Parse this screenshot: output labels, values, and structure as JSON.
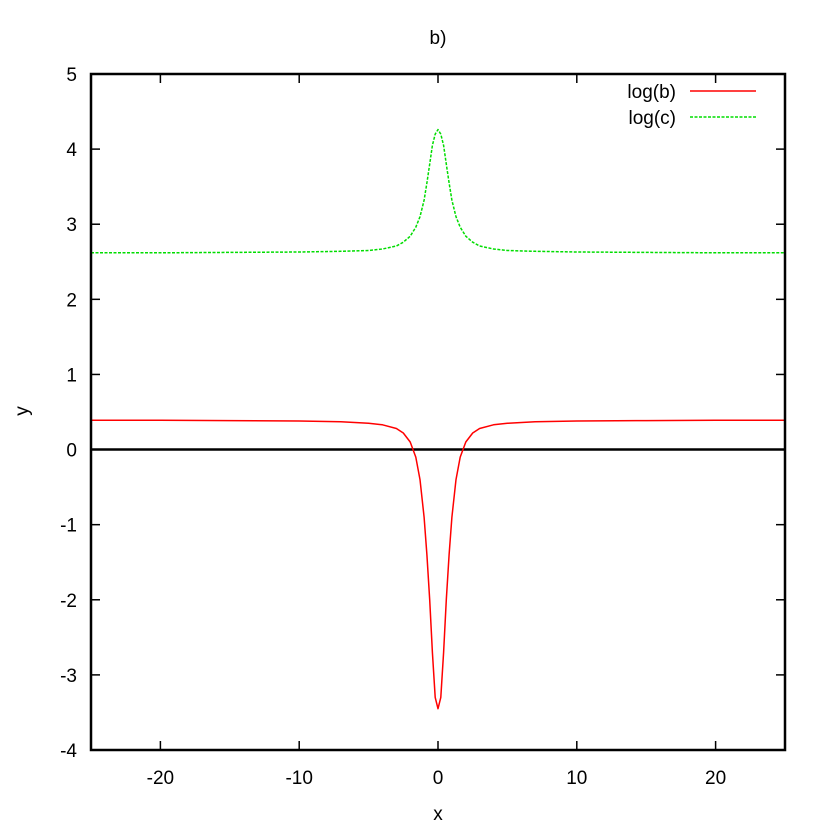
{
  "chart_data": {
    "type": "line",
    "title": "b)",
    "xlabel": "x",
    "ylabel": "y",
    "xlim": [
      -25,
      25
    ],
    "ylim": [
      -4,
      5
    ],
    "xticks": [
      -20,
      -10,
      0,
      10,
      20
    ],
    "yticks": [
      -4,
      -3,
      -2,
      -1,
      0,
      1,
      2,
      3,
      4,
      5
    ],
    "grid": false,
    "legend_position": "top-right",
    "zero_line": 0,
    "series": [
      {
        "name": "log(b)",
        "color": "#ff0000",
        "dash": "solid",
        "x": [
          -25,
          -20,
          -15,
          -10,
          -7,
          -5,
          -4,
          -3,
          -2.5,
          -2,
          -1.6,
          -1.3,
          -1,
          -0.8,
          -0.6,
          -0.4,
          -0.2,
          0,
          0.2,
          0.4,
          0.6,
          0.8,
          1,
          1.3,
          1.6,
          2,
          2.5,
          3,
          4,
          5,
          7,
          10,
          15,
          20,
          25
        ],
        "y": [
          0.39,
          0.39,
          0.385,
          0.38,
          0.37,
          0.35,
          0.33,
          0.28,
          0.22,
          0.1,
          -0.1,
          -0.4,
          -0.9,
          -1.4,
          -2.0,
          -2.7,
          -3.3,
          -3.45,
          -3.3,
          -2.7,
          -2.0,
          -1.4,
          -0.9,
          -0.4,
          -0.1,
          0.1,
          0.22,
          0.28,
          0.33,
          0.35,
          0.37,
          0.38,
          0.385,
          0.39,
          0.39
        ]
      },
      {
        "name": "log(c)",
        "color": "#00dd00",
        "dash": "dashed",
        "x": [
          -25,
          -20,
          -15,
          -10,
          -7,
          -5,
          -4,
          -3,
          -2.5,
          -2,
          -1.6,
          -1.3,
          -1,
          -0.8,
          -0.6,
          -0.4,
          -0.2,
          0,
          0.2,
          0.4,
          0.6,
          0.8,
          1,
          1.3,
          1.6,
          2,
          2.5,
          3,
          4,
          5,
          7,
          10,
          15,
          20,
          25
        ],
        "y": [
          2.62,
          2.62,
          2.625,
          2.63,
          2.64,
          2.65,
          2.67,
          2.71,
          2.76,
          2.84,
          2.96,
          3.1,
          3.32,
          3.55,
          3.8,
          4.05,
          4.2,
          4.26,
          4.2,
          4.05,
          3.8,
          3.55,
          3.32,
          3.1,
          2.96,
          2.84,
          2.76,
          2.71,
          2.67,
          2.65,
          2.64,
          2.63,
          2.625,
          2.62,
          2.62
        ]
      }
    ]
  }
}
